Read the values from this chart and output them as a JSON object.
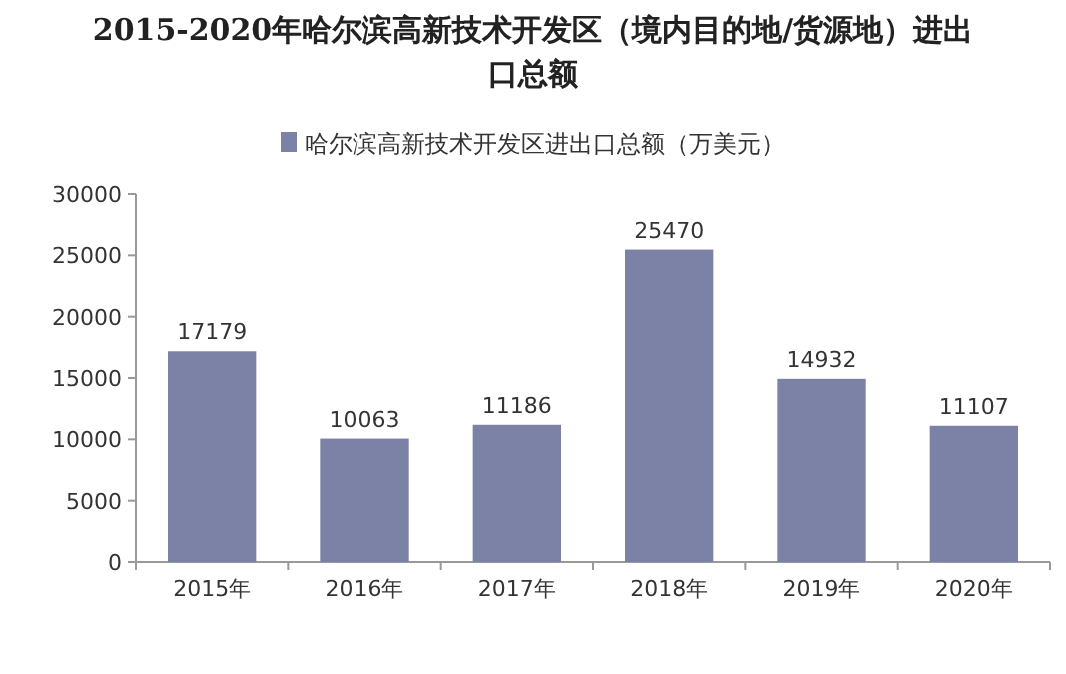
{
  "chart_data": {
    "type": "bar",
    "title": "2015-2020年哈尔滨高新技术开发区（境内目的地/货源地）进出口总额",
    "categories": [
      "2015年",
      "2016年",
      "2017年",
      "2018年",
      "2019年",
      "2020年"
    ],
    "series": [
      {
        "name": "哈尔滨高新技术开发区进出口总额（万美元）",
        "color": "#7c82a6",
        "values": [
          17179,
          10063,
          11186,
          25470,
          14932,
          11107
        ]
      }
    ],
    "ylim": [
      0,
      30000
    ],
    "yticks": [
      0,
      5000,
      10000,
      15000,
      20000,
      25000,
      30000
    ],
    "data_labels": true,
    "legend": "top",
    "grid": false
  }
}
